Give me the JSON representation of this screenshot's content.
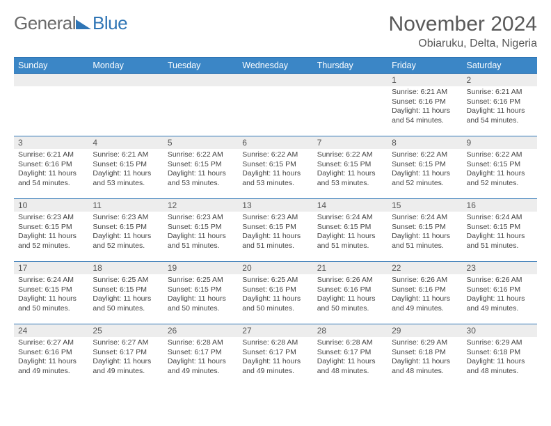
{
  "brand": {
    "left": "General",
    "right": "Blue"
  },
  "title": "November 2024",
  "location": "Obiaruku, Delta, Nigeria",
  "colors": {
    "header_bg": "#3b86c6",
    "accent": "#2f75b5",
    "daynum_bg": "#ededed",
    "text": "#333333",
    "title_text": "#595959"
  },
  "day_headers": [
    "Sunday",
    "Monday",
    "Tuesday",
    "Wednesday",
    "Thursday",
    "Friday",
    "Saturday"
  ],
  "weeks": [
    [
      {
        "num": "",
        "lines": []
      },
      {
        "num": "",
        "lines": []
      },
      {
        "num": "",
        "lines": []
      },
      {
        "num": "",
        "lines": []
      },
      {
        "num": "",
        "lines": []
      },
      {
        "num": "1",
        "lines": [
          "Sunrise: 6:21 AM",
          "Sunset: 6:16 PM",
          "Daylight: 11 hours and 54 minutes."
        ]
      },
      {
        "num": "2",
        "lines": [
          "Sunrise: 6:21 AM",
          "Sunset: 6:16 PM",
          "Daylight: 11 hours and 54 minutes."
        ]
      }
    ],
    [
      {
        "num": "3",
        "lines": [
          "Sunrise: 6:21 AM",
          "Sunset: 6:16 PM",
          "Daylight: 11 hours and 54 minutes."
        ]
      },
      {
        "num": "4",
        "lines": [
          "Sunrise: 6:21 AM",
          "Sunset: 6:15 PM",
          "Daylight: 11 hours and 53 minutes."
        ]
      },
      {
        "num": "5",
        "lines": [
          "Sunrise: 6:22 AM",
          "Sunset: 6:15 PM",
          "Daylight: 11 hours and 53 minutes."
        ]
      },
      {
        "num": "6",
        "lines": [
          "Sunrise: 6:22 AM",
          "Sunset: 6:15 PM",
          "Daylight: 11 hours and 53 minutes."
        ]
      },
      {
        "num": "7",
        "lines": [
          "Sunrise: 6:22 AM",
          "Sunset: 6:15 PM",
          "Daylight: 11 hours and 53 minutes."
        ]
      },
      {
        "num": "8",
        "lines": [
          "Sunrise: 6:22 AM",
          "Sunset: 6:15 PM",
          "Daylight: 11 hours and 52 minutes."
        ]
      },
      {
        "num": "9",
        "lines": [
          "Sunrise: 6:22 AM",
          "Sunset: 6:15 PM",
          "Daylight: 11 hours and 52 minutes."
        ]
      }
    ],
    [
      {
        "num": "10",
        "lines": [
          "Sunrise: 6:23 AM",
          "Sunset: 6:15 PM",
          "Daylight: 11 hours and 52 minutes."
        ]
      },
      {
        "num": "11",
        "lines": [
          "Sunrise: 6:23 AM",
          "Sunset: 6:15 PM",
          "Daylight: 11 hours and 52 minutes."
        ]
      },
      {
        "num": "12",
        "lines": [
          "Sunrise: 6:23 AM",
          "Sunset: 6:15 PM",
          "Daylight: 11 hours and 51 minutes."
        ]
      },
      {
        "num": "13",
        "lines": [
          "Sunrise: 6:23 AM",
          "Sunset: 6:15 PM",
          "Daylight: 11 hours and 51 minutes."
        ]
      },
      {
        "num": "14",
        "lines": [
          "Sunrise: 6:24 AM",
          "Sunset: 6:15 PM",
          "Daylight: 11 hours and 51 minutes."
        ]
      },
      {
        "num": "15",
        "lines": [
          "Sunrise: 6:24 AM",
          "Sunset: 6:15 PM",
          "Daylight: 11 hours and 51 minutes."
        ]
      },
      {
        "num": "16",
        "lines": [
          "Sunrise: 6:24 AM",
          "Sunset: 6:15 PM",
          "Daylight: 11 hours and 51 minutes."
        ]
      }
    ],
    [
      {
        "num": "17",
        "lines": [
          "Sunrise: 6:24 AM",
          "Sunset: 6:15 PM",
          "Daylight: 11 hours and 50 minutes."
        ]
      },
      {
        "num": "18",
        "lines": [
          "Sunrise: 6:25 AM",
          "Sunset: 6:15 PM",
          "Daylight: 11 hours and 50 minutes."
        ]
      },
      {
        "num": "19",
        "lines": [
          "Sunrise: 6:25 AM",
          "Sunset: 6:15 PM",
          "Daylight: 11 hours and 50 minutes."
        ]
      },
      {
        "num": "20",
        "lines": [
          "Sunrise: 6:25 AM",
          "Sunset: 6:16 PM",
          "Daylight: 11 hours and 50 minutes."
        ]
      },
      {
        "num": "21",
        "lines": [
          "Sunrise: 6:26 AM",
          "Sunset: 6:16 PM",
          "Daylight: 11 hours and 50 minutes."
        ]
      },
      {
        "num": "22",
        "lines": [
          "Sunrise: 6:26 AM",
          "Sunset: 6:16 PM",
          "Daylight: 11 hours and 49 minutes."
        ]
      },
      {
        "num": "23",
        "lines": [
          "Sunrise: 6:26 AM",
          "Sunset: 6:16 PM",
          "Daylight: 11 hours and 49 minutes."
        ]
      }
    ],
    [
      {
        "num": "24",
        "lines": [
          "Sunrise: 6:27 AM",
          "Sunset: 6:16 PM",
          "Daylight: 11 hours and 49 minutes."
        ]
      },
      {
        "num": "25",
        "lines": [
          "Sunrise: 6:27 AM",
          "Sunset: 6:17 PM",
          "Daylight: 11 hours and 49 minutes."
        ]
      },
      {
        "num": "26",
        "lines": [
          "Sunrise: 6:28 AM",
          "Sunset: 6:17 PM",
          "Daylight: 11 hours and 49 minutes."
        ]
      },
      {
        "num": "27",
        "lines": [
          "Sunrise: 6:28 AM",
          "Sunset: 6:17 PM",
          "Daylight: 11 hours and 49 minutes."
        ]
      },
      {
        "num": "28",
        "lines": [
          "Sunrise: 6:28 AM",
          "Sunset: 6:17 PM",
          "Daylight: 11 hours and 48 minutes."
        ]
      },
      {
        "num": "29",
        "lines": [
          "Sunrise: 6:29 AM",
          "Sunset: 6:18 PM",
          "Daylight: 11 hours and 48 minutes."
        ]
      },
      {
        "num": "30",
        "lines": [
          "Sunrise: 6:29 AM",
          "Sunset: 6:18 PM",
          "Daylight: 11 hours and 48 minutes."
        ]
      }
    ]
  ]
}
